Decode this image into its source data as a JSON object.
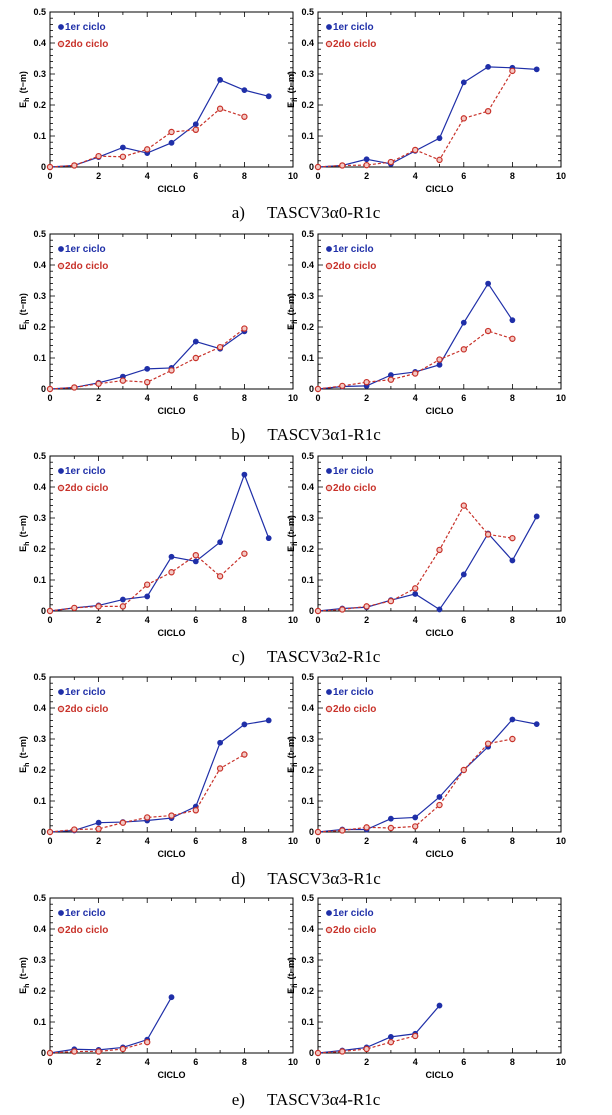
{
  "chart_data": [
    {
      "type": "line",
      "panel": "a-left",
      "x": [
        0,
        1,
        2,
        3,
        4,
        5,
        6,
        7,
        8,
        9
      ],
      "xlim": [
        0,
        10
      ],
      "ylim": [
        0,
        0.5
      ],
      "xlabel": "CICLO",
      "ylabel": "E_h (t-m)",
      "xticks": [
        0,
        2,
        4,
        6,
        8,
        10
      ],
      "yticks": [
        0,
        0.1,
        0.2,
        0.3,
        0.4,
        0.5
      ],
      "series": [
        {
          "name": "1er ciclo",
          "values": [
            0,
            0.005,
            0.032,
            0.063,
            0.045,
            0.078,
            0.138,
            0.281,
            0.248,
            0.228
          ]
        },
        {
          "name": "2do ciclo",
          "values": [
            0,
            0.005,
            0.035,
            0.033,
            0.057,
            0.113,
            0.12,
            0.188,
            0.162,
            null
          ]
        }
      ]
    },
    {
      "type": "line",
      "panel": "a-right",
      "x": [
        0,
        1,
        2,
        3,
        4,
        5,
        6,
        7,
        8,
        9
      ],
      "xlim": [
        0,
        10
      ],
      "ylim": [
        0,
        0.5
      ],
      "xlabel": "CICLO",
      "ylabel": "E_h (t-m)",
      "xticks": [
        0,
        2,
        4,
        6,
        8,
        10
      ],
      "yticks": [
        0,
        0.1,
        0.2,
        0.3,
        0.4,
        0.5
      ],
      "series": [
        {
          "name": "1er ciclo",
          "values": [
            0,
            0.005,
            0.025,
            0.01,
            0.052,
            0.093,
            0.273,
            0.323,
            0.32,
            0.315
          ]
        },
        {
          "name": "2do ciclo",
          "values": [
            0,
            0.005,
            0.006,
            0.016,
            0.055,
            0.023,
            0.157,
            0.18,
            0.31,
            null
          ]
        }
      ]
    },
    {
      "type": "line",
      "panel": "b-left",
      "x": [
        0,
        1,
        2,
        3,
        4,
        5,
        6,
        7,
        8
      ],
      "xlim": [
        0,
        10
      ],
      "ylim": [
        0,
        0.5
      ],
      "xlabel": "CICLO",
      "ylabel": "E_h (t-m)",
      "xticks": [
        0,
        2,
        4,
        6,
        8,
        10
      ],
      "yticks": [
        0,
        0.1,
        0.2,
        0.3,
        0.4,
        0.5
      ],
      "series": [
        {
          "name": "1er ciclo",
          "values": [
            0,
            0.005,
            0.02,
            0.04,
            0.065,
            0.068,
            0.153,
            0.13,
            0.186
          ]
        },
        {
          "name": "2do ciclo",
          "values": [
            0,
            0.005,
            0.017,
            0.027,
            0.022,
            0.06,
            0.1,
            0.135,
            0.195
          ]
        }
      ]
    },
    {
      "type": "line",
      "panel": "b-right",
      "x": [
        0,
        1,
        2,
        3,
        4,
        5,
        6,
        7,
        8
      ],
      "xlim": [
        0,
        10
      ],
      "ylim": [
        0,
        0.5
      ],
      "xlabel": "CICLO",
      "ylabel": "E_h (t-m)",
      "xticks": [
        0,
        2,
        4,
        6,
        8,
        10
      ],
      "yticks": [
        0,
        0.1,
        0.2,
        0.3,
        0.4,
        0.5
      ],
      "series": [
        {
          "name": "1er ciclo",
          "values": [
            0,
            0.008,
            0.01,
            0.045,
            0.055,
            0.078,
            0.214,
            0.34,
            0.222
          ]
        },
        {
          "name": "2do ciclo",
          "values": [
            0,
            0.01,
            0.022,
            0.03,
            0.05,
            0.095,
            0.128,
            0.187,
            0.162
          ]
        }
      ]
    },
    {
      "type": "line",
      "panel": "c-left",
      "x": [
        0,
        1,
        2,
        3,
        4,
        5,
        6,
        7,
        8,
        9
      ],
      "xlim": [
        0,
        10
      ],
      "ylim": [
        0,
        0.5
      ],
      "xlabel": "CICLO",
      "ylabel": "E_h (t-m)",
      "xticks": [
        0,
        2,
        4,
        6,
        8,
        10
      ],
      "yticks": [
        0,
        0.1,
        0.2,
        0.3,
        0.4,
        0.5
      ],
      "series": [
        {
          "name": "1er ciclo",
          "values": [
            0,
            0.01,
            0.018,
            0.037,
            0.047,
            0.175,
            0.16,
            0.222,
            0.44,
            0.235
          ]
        },
        {
          "name": "2do ciclo",
          "values": [
            0,
            0.01,
            0.015,
            0.015,
            0.085,
            0.125,
            0.18,
            0.112,
            0.185,
            null
          ]
        }
      ]
    },
    {
      "type": "line",
      "panel": "c-right",
      "x": [
        0,
        1,
        2,
        3,
        4,
        5,
        6,
        7,
        8,
        9
      ],
      "xlim": [
        0,
        10
      ],
      "ylim": [
        0,
        0.5
      ],
      "xlabel": "CICLO",
      "ylabel": "E_h (t-m)",
      "xticks": [
        0,
        2,
        4,
        6,
        8,
        10
      ],
      "yticks": [
        0,
        0.1,
        0.2,
        0.3,
        0.4,
        0.5
      ],
      "series": [
        {
          "name": "1er ciclo",
          "values": [
            0,
            0.008,
            0.012,
            0.035,
            0.055,
            0.005,
            0.118,
            0.25,
            0.163,
            0.305
          ]
        },
        {
          "name": "2do ciclo",
          "values": [
            0,
            0.005,
            0.015,
            0.032,
            0.073,
            0.197,
            0.34,
            0.247,
            0.235,
            null
          ]
        }
      ]
    },
    {
      "type": "line",
      "panel": "d-left",
      "x": [
        0,
        1,
        2,
        3,
        4,
        5,
        6,
        7,
        8,
        9
      ],
      "xlim": [
        0,
        10
      ],
      "ylim": [
        0,
        0.5
      ],
      "xlabel": "CICLO",
      "ylabel": "E_h (t-m)",
      "xticks": [
        0,
        2,
        4,
        6,
        8,
        10
      ],
      "yticks": [
        0,
        0.1,
        0.2,
        0.3,
        0.4,
        0.5
      ],
      "series": [
        {
          "name": "1er ciclo",
          "values": [
            0,
            0.005,
            0.03,
            0.032,
            0.037,
            0.045,
            0.082,
            0.288,
            0.347,
            0.36
          ]
        },
        {
          "name": "2do ciclo",
          "values": [
            0,
            0.008,
            0.01,
            0.03,
            0.047,
            0.053,
            0.07,
            0.205,
            0.25,
            null
          ]
        }
      ]
    },
    {
      "type": "line",
      "panel": "d-right",
      "x": [
        0,
        1,
        2,
        3,
        4,
        5,
        6,
        7,
        8,
        9
      ],
      "xlim": [
        0,
        10
      ],
      "ylim": [
        0,
        0.5
      ],
      "xlabel": "CICLO",
      "ylabel": "E_h (t-m)",
      "xticks": [
        0,
        2,
        4,
        6,
        8,
        10
      ],
      "yticks": [
        0,
        0.1,
        0.2,
        0.3,
        0.4,
        0.5
      ],
      "series": [
        {
          "name": "1er ciclo",
          "values": [
            0,
            0.008,
            0.008,
            0.043,
            0.047,
            0.113,
            0.2,
            0.275,
            0.363,
            0.348
          ]
        },
        {
          "name": "2do ciclo",
          "values": [
            0,
            0.005,
            0.015,
            0.013,
            0.018,
            0.087,
            0.2,
            0.285,
            0.3,
            null
          ]
        }
      ]
    },
    {
      "type": "line",
      "panel": "e-left",
      "x": [
        0,
        1,
        2,
        3,
        4,
        5
      ],
      "xlim": [
        0,
        10
      ],
      "ylim": [
        0,
        0.5
      ],
      "xlabel": "CICLO",
      "ylabel": "E_h (t-m)",
      "xticks": [
        0,
        2,
        4,
        6,
        8,
        10
      ],
      "yticks": [
        0,
        0.1,
        0.2,
        0.3,
        0.4,
        0.5
      ],
      "series": [
        {
          "name": "1er ciclo",
          "values": [
            0,
            0.012,
            0.01,
            0.018,
            0.043,
            0.18
          ]
        },
        {
          "name": "2do ciclo",
          "values": [
            0,
            0.005,
            0.005,
            0.013,
            0.035,
            null
          ]
        }
      ]
    },
    {
      "type": "line",
      "panel": "e-right",
      "x": [
        0,
        1,
        2,
        3,
        4,
        5
      ],
      "xlim": [
        0,
        10
      ],
      "ylim": [
        0,
        0.5
      ],
      "xlabel": "CICLO",
      "ylabel": "E_h (t-m)",
      "xticks": [
        0,
        2,
        4,
        6,
        8,
        10
      ],
      "yticks": [
        0,
        0.1,
        0.2,
        0.3,
        0.4,
        0.5
      ],
      "series": [
        {
          "name": "1er ciclo",
          "values": [
            0,
            0.008,
            0.018,
            0.052,
            0.062,
            0.153
          ]
        },
        {
          "name": "2do ciclo",
          "values": [
            0,
            0.005,
            0.013,
            0.035,
            0.055,
            null
          ]
        }
      ]
    }
  ],
  "captions": [
    {
      "letter": "a)",
      "text": "TASCV3α0-R1c"
    },
    {
      "letter": "b)",
      "text": "TASCV3α1-R1c"
    },
    {
      "letter": "c)",
      "text": "TASCV3α2-R1c"
    },
    {
      "letter": "d)",
      "text": "TASCV3α3-R1c"
    },
    {
      "letter": "e)",
      "text": "TASCV3α4-R1c"
    }
  ],
  "colors": {
    "series1": "#1f2fa8",
    "series2": "#c8322a",
    "axis": "#000000"
  }
}
